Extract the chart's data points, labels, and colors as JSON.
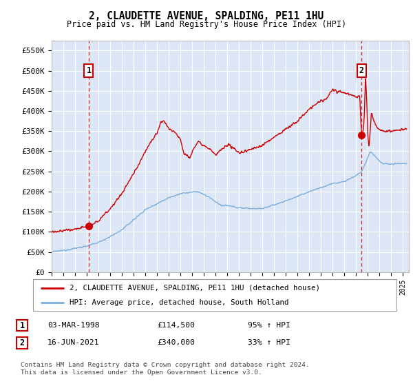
{
  "title": "2, CLAUDETTE AVENUE, SPALDING, PE11 1HU",
  "subtitle": "Price paid vs. HM Land Registry's House Price Index (HPI)",
  "ylim": [
    0,
    575000
  ],
  "yticks": [
    0,
    50000,
    100000,
    150000,
    200000,
    250000,
    300000,
    350000,
    400000,
    450000,
    500000,
    550000
  ],
  "ytick_labels": [
    "£0",
    "£50K",
    "£100K",
    "£150K",
    "£200K",
    "£250K",
    "£300K",
    "£350K",
    "£400K",
    "£450K",
    "£500K",
    "£550K"
  ],
  "plot_bg_color": "#dce6f5",
  "grid_color": "#ffffff",
  "line1_color": "#cc0000",
  "line2_color": "#7aaddc",
  "sale1_year": 1998.17,
  "sale1_price": 114500,
  "sale2_year": 2021.46,
  "sale2_price": 340000,
  "legend1": "2, CLAUDETTE AVENUE, SPALDING, PE11 1HU (detached house)",
  "legend2": "HPI: Average price, detached house, South Holland",
  "table_row1": [
    "1",
    "03-MAR-1998",
    "£114,500",
    "95% ↑ HPI"
  ],
  "table_row2": [
    "2",
    "16-JUN-2021",
    "£340,000",
    "33% ↑ HPI"
  ],
  "copyright": "Contains HM Land Registry data © Crown copyright and database right 2024.\nThis data is licensed under the Open Government Licence v3.0.",
  "xmin": 1995.0,
  "xmax": 2025.5
}
